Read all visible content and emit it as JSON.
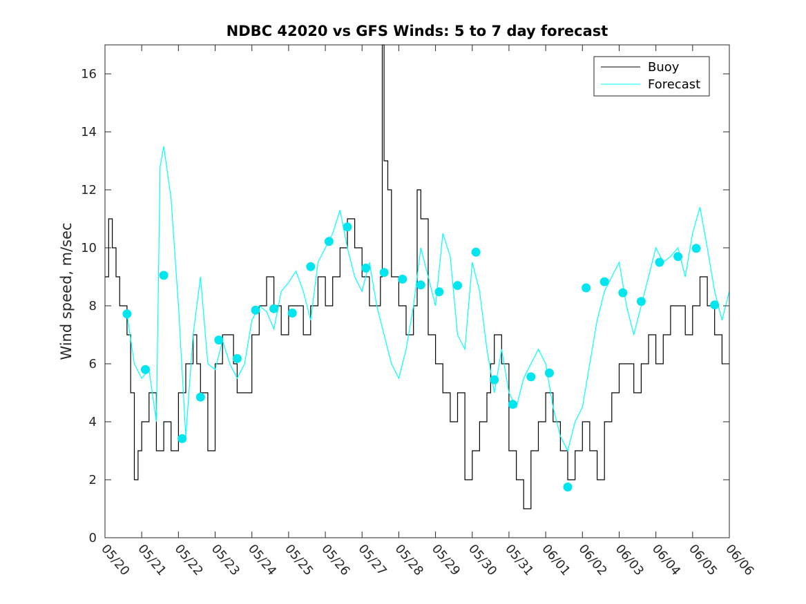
{
  "chart_data": {
    "type": "line",
    "title": "NDBC 42020 vs GFS Winds: 5 to 7 day forecast",
    "xlabel": "",
    "ylabel": "Wind speed, m/sec",
    "x_ticks": [
      "05/20",
      "05/21",
      "05/22",
      "05/23",
      "05/24",
      "05/25",
      "05/26",
      "05/27",
      "05/28",
      "05/29",
      "05/30",
      "05/31",
      "06/01",
      "06/02",
      "06/03",
      "06/04",
      "06/05",
      "06/06"
    ],
    "y_ticks": [
      0,
      2,
      4,
      6,
      8,
      10,
      12,
      14,
      16
    ],
    "xlim_days": [
      0,
      17
    ],
    "ylim": [
      0,
      17
    ],
    "grid": false,
    "legend_position": "top-right",
    "colors": {
      "buoy": "#000000",
      "forecast": "#00ffff",
      "marker": "#00e5ee",
      "axis": "#262626"
    },
    "series": [
      {
        "name": "Buoy",
        "type": "line",
        "x": [
          0,
          0.1,
          0.2,
          0.3,
          0.4,
          0.5,
          0.6,
          0.7,
          0.8,
          0.9,
          1.0,
          1.2,
          1.4,
          1.6,
          1.8,
          2.0,
          2.2,
          2.4,
          2.5,
          2.6,
          2.8,
          3.0,
          3.2,
          3.4,
          3.5,
          3.6,
          3.8,
          4.0,
          4.2,
          4.4,
          4.6,
          4.8,
          5.0,
          5.2,
          5.4,
          5.6,
          5.8,
          6.0,
          6.2,
          6.4,
          6.6,
          6.8,
          7.0,
          7.2,
          7.4,
          7.5,
          7.55,
          7.6,
          7.7,
          7.8,
          8.0,
          8.2,
          8.4,
          8.5,
          8.6,
          8.8,
          9.0,
          9.2,
          9.4,
          9.6,
          9.8,
          10.0,
          10.2,
          10.4,
          10.5,
          10.6,
          10.8,
          11.0,
          11.2,
          11.4,
          11.6,
          11.8,
          12.0,
          12.2,
          12.4,
          12.6,
          12.8,
          13.0,
          13.2,
          13.4,
          13.6,
          13.8,
          14.0,
          14.2,
          14.4,
          14.6,
          14.8,
          15.0,
          15.2,
          15.4,
          15.6,
          15.8,
          16.0,
          16.2,
          16.4,
          16.6,
          16.8,
          17.0
        ],
        "y": [
          9,
          11,
          10,
          9,
          8,
          8,
          7,
          5,
          2,
          3,
          4,
          5,
          3,
          4,
          3,
          5,
          6,
          7,
          6,
          5,
          3,
          6,
          7,
          7,
          6,
          5,
          5,
          7,
          8,
          9,
          8,
          7,
          8,
          8,
          7,
          8,
          9,
          8,
          9,
          10,
          11,
          10,
          9,
          8,
          8,
          9,
          17,
          13,
          12,
          9,
          8,
          7,
          8,
          12,
          11,
          7,
          6,
          5,
          4,
          5,
          2,
          3,
          4,
          5,
          6,
          7,
          6,
          3,
          2,
          1,
          3,
          4,
          5,
          4,
          3,
          2,
          3,
          4,
          3,
          2,
          4,
          5,
          6,
          6,
          5,
          6,
          7,
          6,
          7,
          8,
          8,
          7,
          8,
          9,
          8,
          7,
          6,
          6
        ]
      },
      {
        "name": "Forecast",
        "type": "line",
        "x": [
          0.6,
          0.8,
          1.0,
          1.2,
          1.4,
          1.5,
          1.6,
          1.8,
          2.0,
          2.2,
          2.4,
          2.6,
          2.8,
          3.0,
          3.2,
          3.4,
          3.6,
          3.8,
          4.0,
          4.2,
          4.4,
          4.6,
          4.8,
          5.0,
          5.2,
          5.4,
          5.6,
          5.8,
          6.0,
          6.2,
          6.4,
          6.6,
          6.8,
          7.0,
          7.2,
          7.4,
          7.6,
          7.8,
          8.0,
          8.2,
          8.4,
          8.6,
          8.8,
          9.0,
          9.2,
          9.4,
          9.6,
          9.8,
          10.0,
          10.2,
          10.4,
          10.6,
          10.8,
          11.0,
          11.2,
          11.4,
          11.6,
          11.8,
          12.0,
          12.2,
          12.4,
          12.6,
          12.8,
          13.0,
          13.2,
          13.4,
          13.6,
          13.8,
          14.0,
          14.2,
          14.4,
          14.6,
          14.8,
          15.0,
          15.2,
          15.4,
          15.6,
          15.8,
          16.0,
          16.2,
          16.4,
          16.6,
          16.8,
          17.0
        ],
        "y": [
          7.7,
          6,
          5.5,
          5.8,
          4,
          12.8,
          13.5,
          11.7,
          8,
          3.5,
          7,
          9,
          6,
          5.8,
          6.8,
          6,
          5.5,
          6,
          7.5,
          8,
          7.8,
          7.2,
          8.5,
          8.8,
          9.2,
          8.5,
          7.5,
          9.5,
          10,
          10.5,
          11.3,
          10,
          9,
          8.5,
          9.5,
          8,
          7,
          6,
          5.5,
          6.5,
          8,
          10,
          9,
          8,
          10.5,
          9.7,
          7,
          6.5,
          9.5,
          8.5,
          6.5,
          5,
          6.5,
          5,
          4.5,
          5.5,
          6,
          6.5,
          6,
          4.5,
          3.5,
          3,
          4,
          4.5,
          6,
          7.5,
          8.5,
          9,
          9.5,
          8,
          7,
          8,
          9,
          10,
          9.5,
          9.7,
          10,
          9,
          10.5,
          11.4,
          10,
          8.5,
          7.5,
          8.5
        ]
      },
      {
        "name": "",
        "type": "scatter",
        "x": [
          0.6,
          1.1,
          1.6,
          2.1,
          2.6,
          3.1,
          3.6,
          4.1,
          4.6,
          5.1,
          5.6,
          6.1,
          6.6,
          7.1,
          7.6,
          8.1,
          8.6,
          9.1,
          9.6,
          10.1,
          10.6,
          11.1,
          11.6,
          12.1,
          12.6,
          13.1,
          13.6,
          14.1,
          14.6,
          15.1,
          15.6,
          16.1,
          16.6
        ],
        "y": [
          7.72,
          5.8,
          9.05,
          3.42,
          4.85,
          6.82,
          6.18,
          7.85,
          7.9,
          7.75,
          9.35,
          10.22,
          10.72,
          9.3,
          9.15,
          8.92,
          8.72,
          8.48,
          8.7,
          9.85,
          5.45,
          4.6,
          5.55,
          5.68,
          1.75,
          8.62,
          8.83,
          8.45,
          8.15,
          9.5,
          9.7,
          9.98,
          8.03
        ]
      }
    ]
  }
}
